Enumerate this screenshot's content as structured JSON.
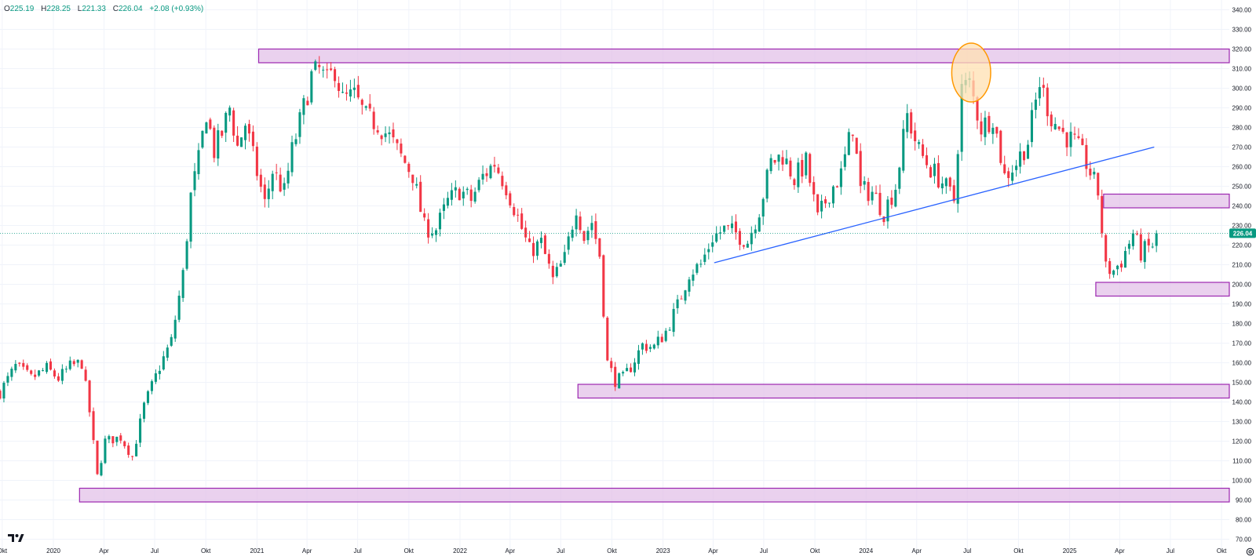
{
  "legend": {
    "o_key": "O",
    "o_val": "225.19",
    "h_key": "H",
    "h_val": "228.25",
    "l_key": "L",
    "l_val": "221.33",
    "c_key": "C",
    "c_val": "226.04",
    "change": "+2.08 (+0.93%)"
  },
  "price_label": "226.04",
  "icons": {
    "logo": "tradingview-logo-icon",
    "settings": "settings-icon"
  },
  "colors": {
    "up": "#089981",
    "down": "#f23645",
    "zone_fill": "#e1bee7",
    "zone_border": "#9c27b0",
    "trendline": "#2962ff",
    "highlight_fill": "#ffe0b2",
    "highlight_border": "#ff9800",
    "price_badge": "#089981",
    "grid": "#f0f3fa",
    "axis_text": "#131722"
  },
  "chart_data": {
    "type": "candlestick",
    "interval": "weekly",
    "y_range": [
      65,
      345
    ],
    "y_ticks": [
      70,
      80,
      90,
      100,
      110,
      120,
      130,
      140,
      150,
      160,
      170,
      180,
      190,
      200,
      210,
      220,
      230,
      240,
      250,
      260,
      270,
      280,
      290,
      300,
      310,
      320,
      330,
      340
    ],
    "x_range": [
      "2019-09-27",
      "2025-10-15"
    ],
    "x_ticks": [
      {
        "date": "2019-10-01",
        "label": "Okt"
      },
      {
        "date": "2020-01-01",
        "label": "2020"
      },
      {
        "date": "2020-04-01",
        "label": "Apr"
      },
      {
        "date": "2020-07-01",
        "label": "Jul"
      },
      {
        "date": "2020-10-01",
        "label": "Okt"
      },
      {
        "date": "2021-01-01",
        "label": "2021"
      },
      {
        "date": "2021-04-01",
        "label": "Apr"
      },
      {
        "date": "2021-07-01",
        "label": "Jul"
      },
      {
        "date": "2021-10-01",
        "label": "Okt"
      },
      {
        "date": "2022-01-01",
        "label": "2022"
      },
      {
        "date": "2022-04-01",
        "label": "Apr"
      },
      {
        "date": "2022-07-01",
        "label": "Jul"
      },
      {
        "date": "2022-10-01",
        "label": "Okt"
      },
      {
        "date": "2023-01-01",
        "label": "2023"
      },
      {
        "date": "2023-04-01",
        "label": "Apr"
      },
      {
        "date": "2023-07-01",
        "label": "Jul"
      },
      {
        "date": "2023-10-01",
        "label": "Okt"
      },
      {
        "date": "2024-01-01",
        "label": "2024"
      },
      {
        "date": "2024-04-01",
        "label": "Apr"
      },
      {
        "date": "2024-07-01",
        "label": "Jul"
      },
      {
        "date": "2024-10-01",
        "label": "Okt"
      },
      {
        "date": "2025-01-01",
        "label": "2025"
      },
      {
        "date": "2025-04-01",
        "label": "Apr"
      },
      {
        "date": "2025-07-01",
        "label": "Jul"
      },
      {
        "date": "2025-10-01",
        "label": "Okt"
      }
    ],
    "last_close": 226.04,
    "price_path": [
      [
        "2019-09-27",
        145
      ],
      [
        "2019-10-25",
        158
      ],
      [
        "2019-11-22",
        152
      ],
      [
        "2019-12-20",
        157
      ],
      [
        "2020-01-10",
        152
      ],
      [
        "2020-01-31",
        158
      ],
      [
        "2020-02-21",
        160
      ],
      [
        "2020-03-06",
        135
      ],
      [
        "2020-03-20",
        102
      ],
      [
        "2020-04-03",
        120
      ],
      [
        "2020-05-01",
        122
      ],
      [
        "2020-05-22",
        112
      ],
      [
        "2020-06-12",
        138
      ],
      [
        "2020-07-10",
        158
      ],
      [
        "2020-07-31",
        171
      ],
      [
        "2020-08-21",
        205
      ],
      [
        "2020-09-04",
        245
      ],
      [
        "2020-09-18",
        263
      ],
      [
        "2020-10-02",
        288
      ],
      [
        "2020-10-16",
        268
      ],
      [
        "2020-10-30",
        277
      ],
      [
        "2020-11-13",
        290
      ],
      [
        "2020-11-27",
        270
      ],
      [
        "2020-12-11",
        282
      ],
      [
        "2020-12-25",
        265
      ],
      [
        "2021-01-15",
        241
      ],
      [
        "2021-01-29",
        258
      ],
      [
        "2021-02-19",
        247
      ],
      [
        "2021-03-05",
        268
      ],
      [
        "2021-03-26",
        290
      ],
      [
        "2021-04-09",
        306
      ],
      [
        "2021-04-23",
        309
      ],
      [
        "2021-05-07",
        303
      ],
      [
        "2021-05-21",
        310
      ],
      [
        "2021-06-04",
        294
      ],
      [
        "2021-06-25",
        296
      ],
      [
        "2021-07-16",
        285
      ],
      [
        "2021-08-06",
        282
      ],
      [
        "2021-08-27",
        275
      ],
      [
        "2021-09-17",
        265
      ],
      [
        "2021-10-08",
        256
      ],
      [
        "2021-10-29",
        229
      ],
      [
        "2021-11-19",
        228
      ],
      [
        "2021-12-10",
        242
      ],
      [
        "2021-12-31",
        248
      ],
      [
        "2022-01-21",
        243
      ],
      [
        "2022-02-11",
        255
      ],
      [
        "2022-03-04",
        262
      ],
      [
        "2022-03-25",
        250
      ],
      [
        "2022-04-15",
        234
      ],
      [
        "2022-05-06",
        217
      ],
      [
        "2022-05-27",
        221
      ],
      [
        "2022-06-17",
        202
      ],
      [
        "2022-07-08",
        213
      ],
      [
        "2022-07-29",
        240
      ],
      [
        "2022-08-12",
        224
      ],
      [
        "2022-08-26",
        232
      ],
      [
        "2022-09-09",
        215
      ],
      [
        "2022-09-23",
        160
      ],
      [
        "2022-10-07",
        151
      ],
      [
        "2022-10-21",
        152
      ],
      [
        "2022-11-04",
        158
      ],
      [
        "2022-11-25",
        169
      ],
      [
        "2022-12-16",
        168
      ],
      [
        "2023-01-06",
        176
      ],
      [
        "2023-01-27",
        189
      ],
      [
        "2023-02-17",
        206
      ],
      [
        "2023-03-10",
        210
      ],
      [
        "2023-03-31",
        224
      ],
      [
        "2023-04-21",
        228
      ],
      [
        "2023-05-12",
        226
      ],
      [
        "2023-06-02",
        222
      ],
      [
        "2023-06-23",
        238
      ],
      [
        "2023-07-14",
        262
      ],
      [
        "2023-08-04",
        266
      ],
      [
        "2023-08-25",
        254
      ],
      [
        "2023-09-15",
        262
      ],
      [
        "2023-10-06",
        233
      ],
      [
        "2023-10-27",
        247
      ],
      [
        "2023-11-17",
        256
      ],
      [
        "2023-12-08",
        281
      ],
      [
        "2023-12-22",
        248
      ],
      [
        "2024-01-12",
        247
      ],
      [
        "2024-02-02",
        237
      ],
      [
        "2024-02-23",
        250
      ],
      [
        "2024-03-15",
        286
      ],
      [
        "2024-04-05",
        268
      ],
      [
        "2024-04-26",
        259
      ],
      [
        "2024-05-17",
        252
      ],
      [
        "2024-06-07",
        243
      ],
      [
        "2024-06-21",
        300
      ],
      [
        "2024-07-05",
        302
      ],
      [
        "2024-07-26",
        280
      ],
      [
        "2024-08-16",
        286
      ],
      [
        "2024-09-06",
        255
      ],
      [
        "2024-09-27",
        262
      ],
      [
        "2024-10-18",
        273
      ],
      [
        "2024-11-08",
        303
      ],
      [
        "2024-11-29",
        285
      ],
      [
        "2024-12-20",
        277
      ],
      [
        "2025-01-10",
        272
      ],
      [
        "2025-01-31",
        262
      ],
      [
        "2025-02-21",
        247
      ],
      [
        "2025-03-07",
        208
      ],
      [
        "2025-03-21",
        207
      ],
      [
        "2025-04-04",
        212
      ],
      [
        "2025-04-25",
        226
      ],
      [
        "2025-05-09",
        216
      ],
      [
        "2025-05-30",
        220
      ],
      [
        "2025-06-06",
        226.04
      ]
    ],
    "annotations": {
      "zones": [
        {
          "from": "2020-02-17",
          "to": "2025-10-15",
          "low": 89,
          "high": 96
        },
        {
          "from": "2022-08-01",
          "to": "2025-10-15",
          "low": 142,
          "high": 149
        },
        {
          "from": "2021-01-04",
          "to": "2025-10-15",
          "low": 313,
          "high": 320
        },
        {
          "from": "2025-03-03",
          "to": "2025-10-15",
          "low": 239,
          "high": 246
        },
        {
          "from": "2025-02-17",
          "to": "2025-10-15",
          "low": 194,
          "high": 201
        }
      ],
      "trendline": {
        "from": [
          "2023-04-03",
          211
        ],
        "to": [
          "2025-06-02",
          270
        ]
      },
      "highlight": {
        "center": [
          "2024-07-08",
          308
        ],
        "radius_x_days": 35,
        "radius_y": 15
      }
    }
  }
}
